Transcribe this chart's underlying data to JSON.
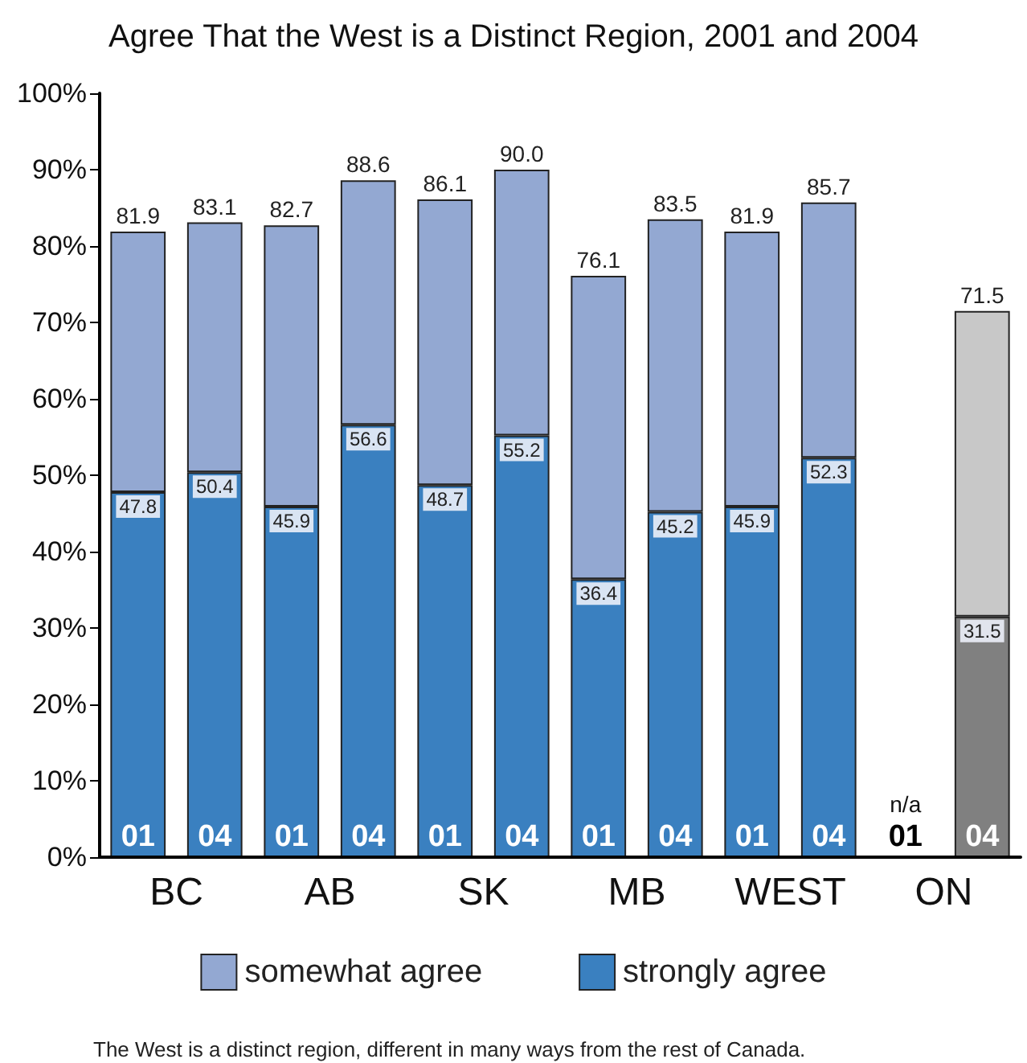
{
  "chart_data": {
    "type": "bar",
    "title": "Agree That the West is a Distinct Region, 2001 and 2004",
    "categories": [
      "01",
      "04",
      "01",
      "04",
      "01",
      "04",
      "01",
      "04",
      "01",
      "04",
      "01",
      "04"
    ],
    "stacked": true,
    "series": [
      {
        "name": "strongly agree",
        "color": "#3a80c0",
        "colors": [
          "#3a80c0",
          "#3a80c0",
          "#3a80c0",
          "#3a80c0",
          "#3a80c0",
          "#3a80c0",
          "#3a80c0",
          "#3a80c0",
          "#3a80c0",
          "#3a80c0",
          "#808080",
          "#808080"
        ],
        "values": [
          47.8,
          50.4,
          45.9,
          56.6,
          48.7,
          55.2,
          36.4,
          45.2,
          45.9,
          52.3,
          null,
          31.5
        ],
        "value_labels": [
          "47.8",
          "50.4",
          "45.9",
          "56.6",
          "48.7",
          "55.2",
          "36.4",
          "45.2",
          "45.9",
          "52.3",
          null,
          "31.5"
        ]
      },
      {
        "name": "somewhat agree",
        "color": "#93a8d2",
        "colors": [
          "#93a8d2",
          "#93a8d2",
          "#93a8d2",
          "#93a8d2",
          "#93a8d2",
          "#93a8d2",
          "#93a8d2",
          "#93a8d2",
          "#93a8d2",
          "#93a8d2",
          "#c8c8c8",
          "#c8c8c8"
        ],
        "values": [
          34.1,
          32.7,
          36.8,
          32.0,
          37.4,
          34.8,
          39.7,
          38.3,
          36.0,
          33.4,
          null,
          40.0
        ]
      }
    ],
    "totals": [
      "81.9",
      "83.1",
      "82.7",
      "88.6",
      "86.1",
      "90.0",
      "76.1",
      "83.5",
      "81.9",
      "85.7",
      null,
      "71.5"
    ],
    "ylim": [
      0,
      100
    ],
    "yticks": [
      {
        "value": 0,
        "label": "0%"
      },
      {
        "value": 10,
        "label": "10%"
      },
      {
        "value": 20,
        "label": "20%"
      },
      {
        "value": 30,
        "label": "30%"
      },
      {
        "value": 40,
        "label": "40%"
      },
      {
        "value": 50,
        "label": "50%"
      },
      {
        "value": 60,
        "label": "60%"
      },
      {
        "value": 70,
        "label": "70%"
      },
      {
        "value": 80,
        "label": "80%"
      },
      {
        "value": 90,
        "label": "90%"
      },
      {
        "value": 100,
        "label": "100%"
      }
    ],
    "annotations": [
      "BC",
      "AB",
      "SK",
      "MB",
      "WEST",
      "ON",
      "n/a",
      "The West is a distinct region, different in many ways from the rest of Canada."
    ],
    "legend": "bottom",
    "grid": false
  }
}
